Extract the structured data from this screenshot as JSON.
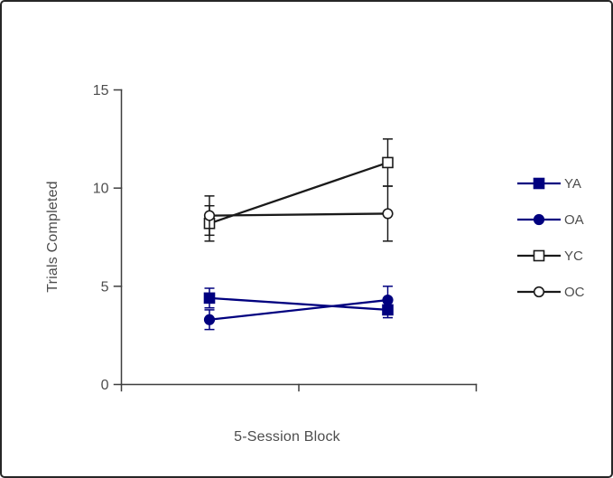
{
  "figure": {
    "background": "#ffffff",
    "border_color": "#262626"
  },
  "chart_data": {
    "type": "line",
    "title": "",
    "xlabel": "5-Session Block",
    "ylabel": "Trials Completed",
    "x": [
      1,
      2
    ],
    "x_tick_labels": [],
    "ylim": [
      0,
      15
    ],
    "y_ticks": [
      0,
      5,
      10,
      15
    ],
    "grid": false,
    "error_bars": true,
    "legend_position": "right",
    "axis_color": "#3f3f3f",
    "text_color": "#4d4d4d",
    "series": [
      {
        "name": "YA",
        "color": "#00007F",
        "marker": "filled-square",
        "values": [
          4.4,
          3.8
        ],
        "errors": [
          0.5,
          0.4
        ]
      },
      {
        "name": "OA",
        "color": "#00007F",
        "marker": "filled-circle",
        "values": [
          3.3,
          4.3
        ],
        "errors": [
          0.5,
          0.7
        ]
      },
      {
        "name": "YC",
        "color": "#1a1a1a",
        "marker": "open-square",
        "values": [
          8.2,
          11.3
        ],
        "errors": [
          0.9,
          1.2
        ]
      },
      {
        "name": "OC",
        "color": "#1a1a1a",
        "marker": "open-circle",
        "values": [
          8.6,
          8.7
        ],
        "errors": [
          1.0,
          1.4
        ]
      }
    ]
  }
}
